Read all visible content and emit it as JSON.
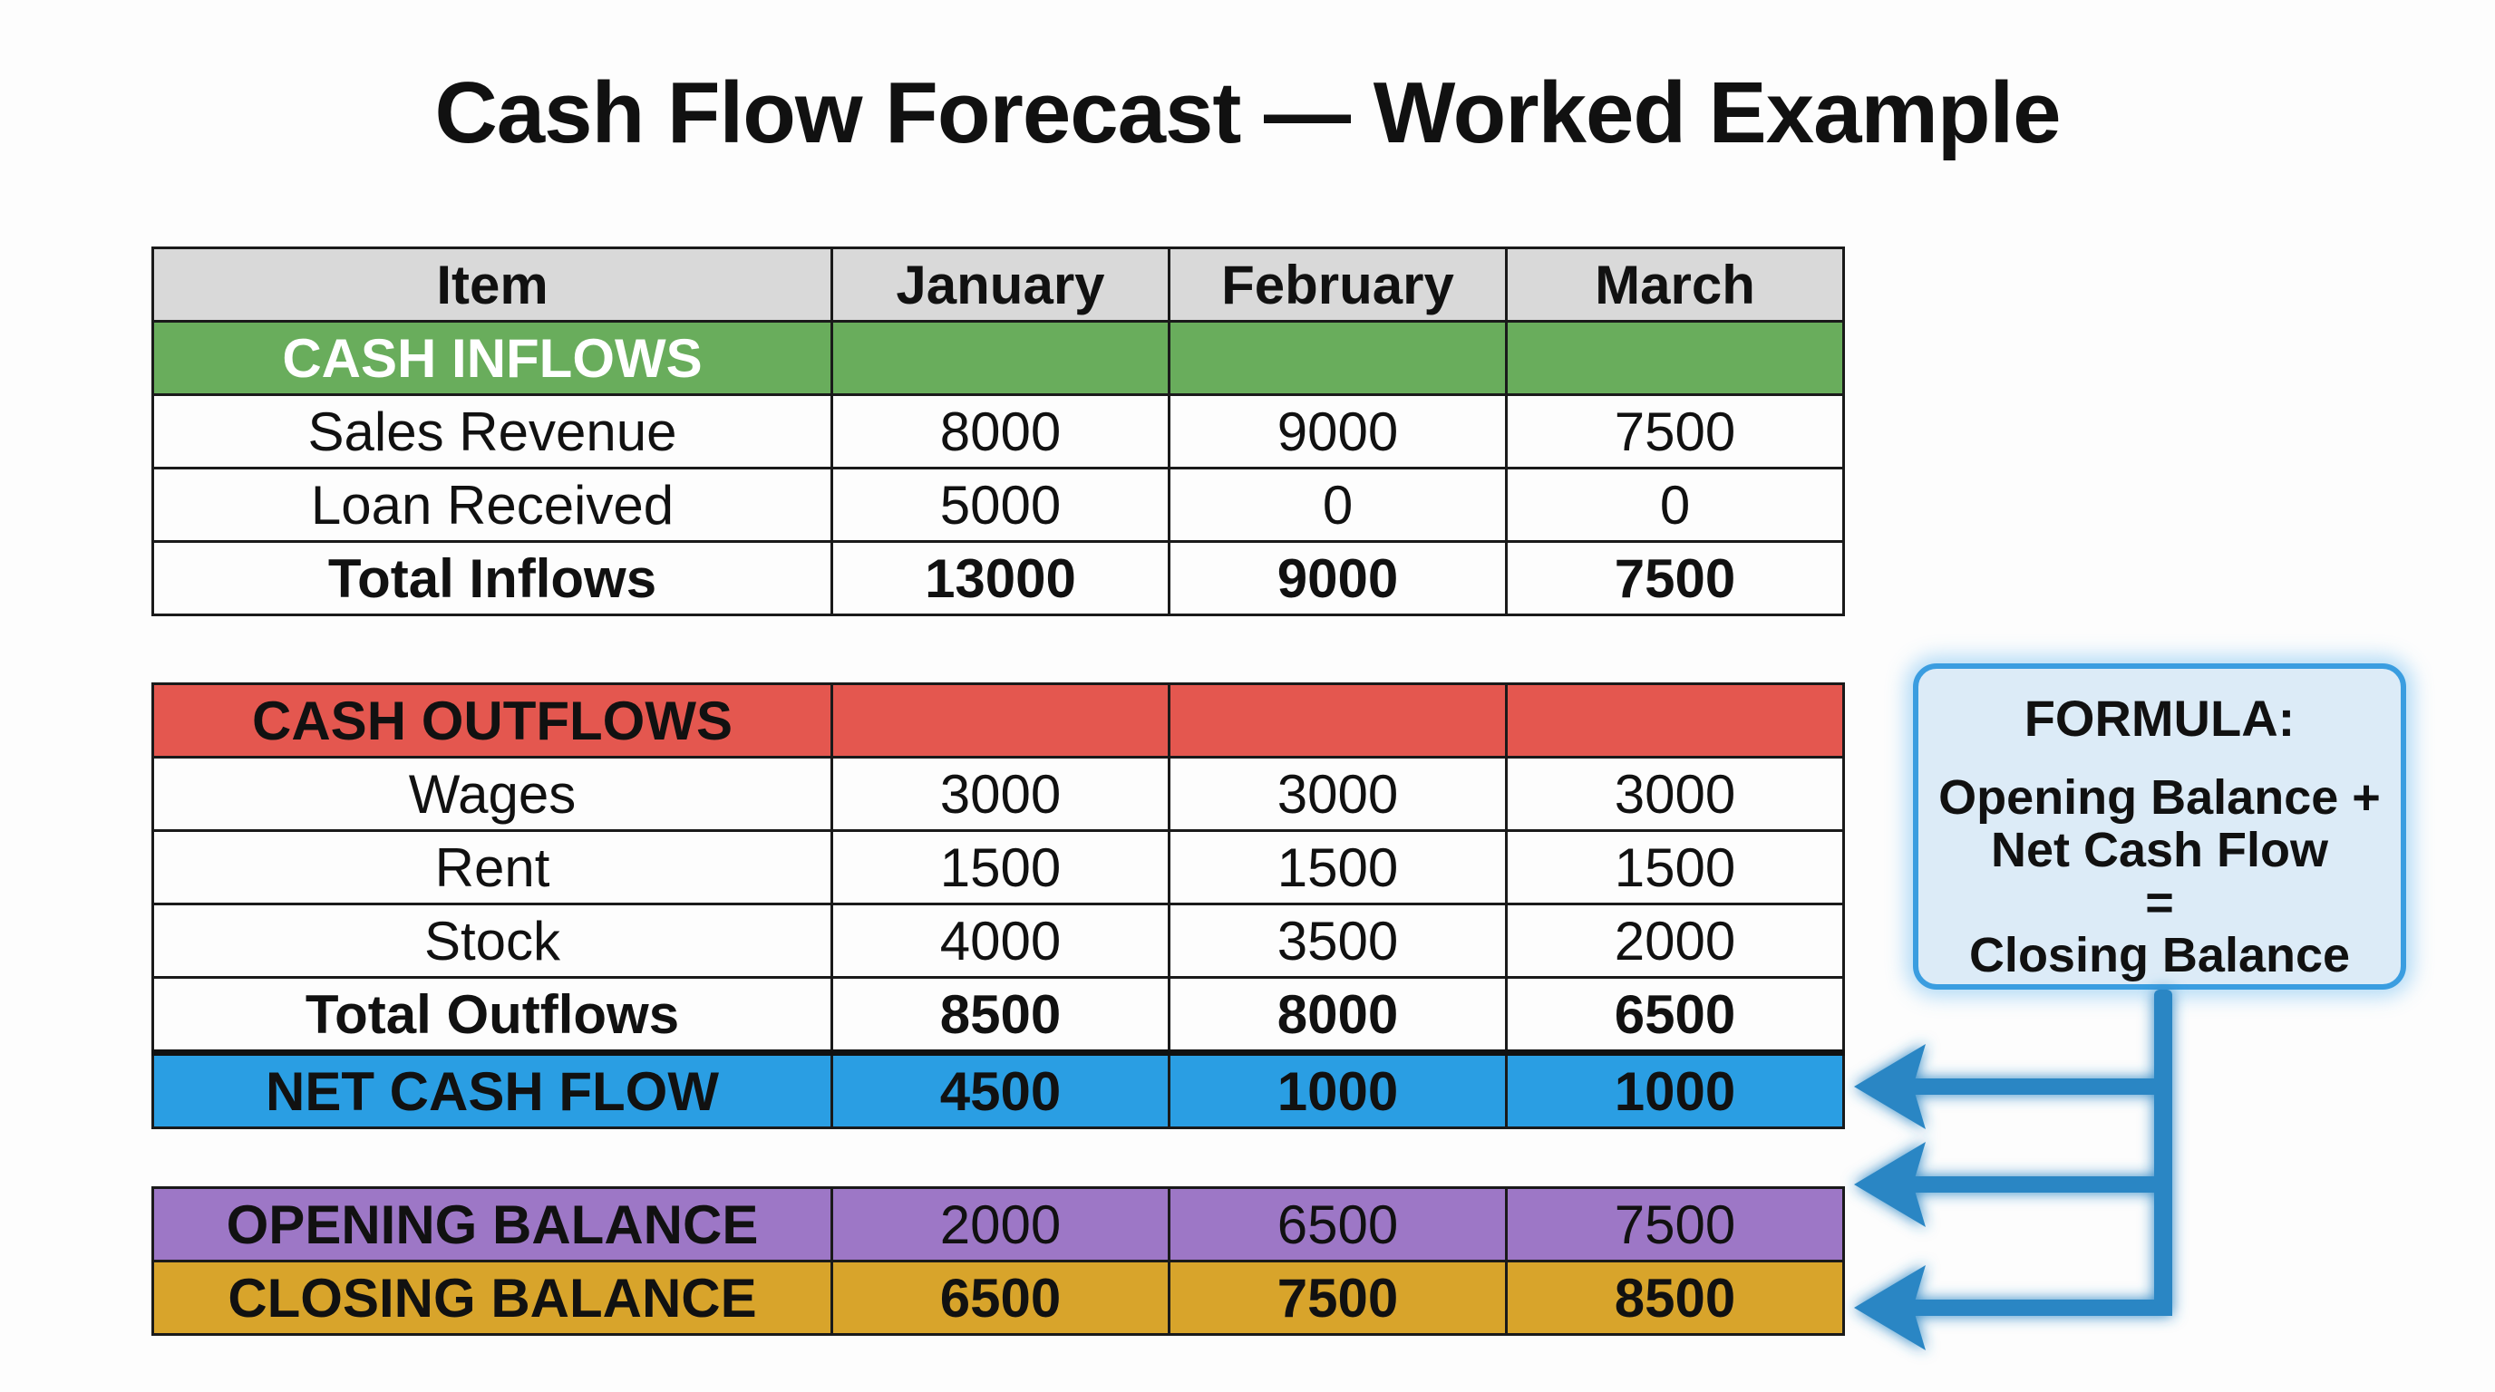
{
  "title": "Cash Flow Forecast — Worked Example",
  "colors": {
    "header": "#d9d9d9",
    "inflows": "#69ad5c",
    "outflows": "#e4574f",
    "net": "#2a9ee3",
    "opening": "#9d77c6",
    "closing": "#d8a42b",
    "formula_border": "#3a9de0",
    "arrow": "#2a86c4"
  },
  "table": {
    "headers": [
      "Item",
      "January",
      "February",
      "March"
    ],
    "inflows_label": "CASH INFLOWS",
    "inflows": [
      {
        "item": "Sales Revenue",
        "values": [
          "8000",
          "9000",
          "7500"
        ]
      },
      {
        "item": "Loan Received",
        "values": [
          "5000",
          "0",
          "0"
        ]
      }
    ],
    "total_inflows": {
      "item": "Total Inflows",
      "values": [
        "13000",
        "9000",
        "7500"
      ]
    },
    "outflows_label": "CASH OUTFLOWS",
    "outflows": [
      {
        "item": "Wages",
        "values": [
          "3000",
          "3000",
          "3000"
        ]
      },
      {
        "item": "Rent",
        "values": [
          "1500",
          "1500",
          "1500"
        ]
      },
      {
        "item": "Stock",
        "values": [
          "4000",
          "3500",
          "2000"
        ]
      }
    ],
    "total_outflows": {
      "item": "Total Outflows",
      "values": [
        "8500",
        "8000",
        "6500"
      ]
    },
    "net_cash_flow": {
      "item": "NET CASH FLOW",
      "values": [
        "4500",
        "1000",
        "1000"
      ]
    },
    "opening_balance": {
      "item": "OPENING BALANCE",
      "values": [
        "2000",
        "6500",
        "7500"
      ]
    },
    "closing_balance": {
      "item": "CLOSING BALANCE",
      "values": [
        "6500",
        "7500",
        "8500"
      ]
    }
  },
  "formula": {
    "heading": "FORMULA:",
    "line1": "Opening Balance +",
    "line2": "Net Cash Flow",
    "line3": "=",
    "line4": "Closing Balance"
  }
}
